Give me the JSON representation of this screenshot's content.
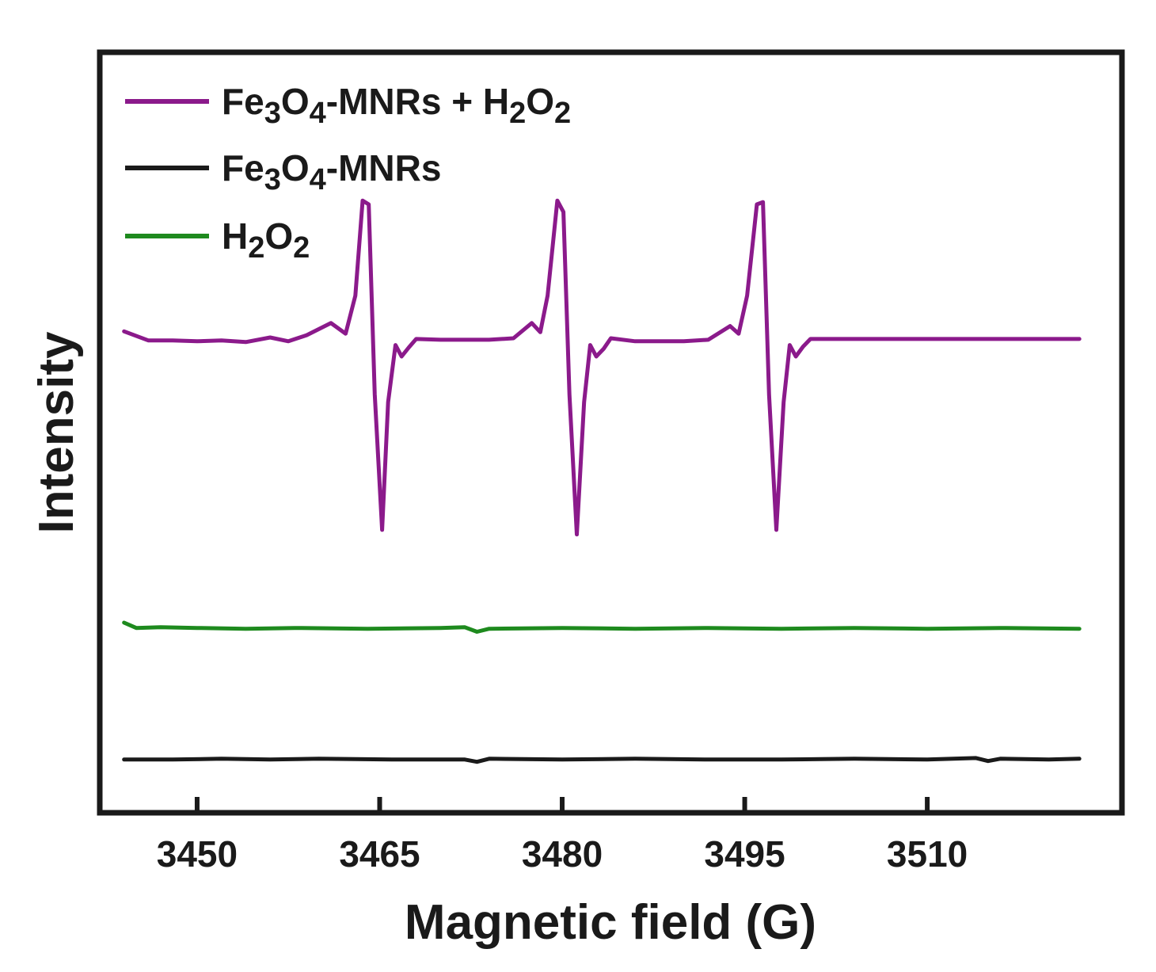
{
  "chart_data": {
    "type": "line",
    "title": "",
    "xlabel": "Magnetic field (G)",
    "ylabel": "Intensity",
    "xlim": [
      3442,
      3526
    ],
    "ylim": [
      0,
      100
    ],
    "xticks": [
      3450,
      3465,
      3480,
      3495,
      3510
    ],
    "xtick_labels": [
      "3450",
      "3465",
      "3480",
      "3495",
      "3510"
    ],
    "y_ticks_shown": false,
    "grid": false,
    "legend_position": "top-left",
    "series": [
      {
        "name": "Fe3O4-MNRs + H2O2",
        "legend": {
          "parts": [
            {
              "text": "Fe",
              "sub": false
            },
            {
              "text": "3",
              "sub": true
            },
            {
              "text": "O",
              "sub": false
            },
            {
              "text": "4",
              "sub": true
            },
            {
              "text": "-MNRs + H",
              "sub": false
            },
            {
              "text": "2",
              "sub": true
            },
            {
              "text": "O",
              "sub": false
            },
            {
              "text": "2",
              "sub": true
            }
          ]
        },
        "color": "#8b1a8b",
        "x": [
          3444,
          3446,
          3448,
          3450,
          3452,
          3454,
          3456,
          3457.5,
          3459,
          3461,
          3462.2,
          3463,
          3463.6,
          3464.1,
          3464.6,
          3465.2,
          3465.7,
          3466.3,
          3466.8,
          3467.4,
          3468,
          3470,
          3474,
          3476,
          3477.5,
          3478.2,
          3478.8,
          3479.6,
          3480.1,
          3480.6,
          3481.2,
          3481.8,
          3482.3,
          3482.8,
          3483.4,
          3484,
          3486,
          3490,
          3492,
          3493.8,
          3494.5,
          3495.2,
          3496,
          3496.5,
          3497,
          3497.6,
          3498.2,
          3498.7,
          3499.2,
          3499.8,
          3500.4,
          3503,
          3506,
          3510,
          3514,
          3518,
          3522.5
        ],
        "y": [
          63.3,
          62.1,
          62.1,
          62.0,
          62.1,
          61.9,
          62.5,
          62.0,
          62.8,
          64.4,
          63.0,
          68.0,
          80.5,
          80.0,
          55.0,
          37.2,
          54.0,
          61.5,
          60.0,
          61.2,
          62.3,
          62.2,
          62.2,
          62.4,
          64.4,
          63.2,
          68.0,
          80.5,
          79.0,
          55.0,
          36.6,
          54.0,
          61.5,
          60.0,
          61.0,
          62.4,
          62.0,
          62.0,
          62.2,
          64.0,
          63.0,
          68.0,
          80.0,
          80.3,
          55.0,
          37.2,
          54.0,
          61.5,
          60.0,
          61.3,
          62.3,
          62.3,
          62.3,
          62.3,
          62.3,
          62.3,
          62.3
        ]
      },
      {
        "name": "Fe3O4-MNRs",
        "legend": {
          "parts": [
            {
              "text": "Fe",
              "sub": false
            },
            {
              "text": "3",
              "sub": true
            },
            {
              "text": "O",
              "sub": false
            },
            {
              "text": "4",
              "sub": true
            },
            {
              "text": "-MNRs",
              "sub": false
            }
          ]
        },
        "color": "#1a1a1a",
        "x": [
          3444,
          3448,
          3452,
          3456,
          3460,
          3466,
          3472,
          3473,
          3474,
          3480,
          3486,
          3492,
          3498,
          3504,
          3510,
          3514,
          3515,
          3516,
          3520,
          3522.5
        ],
        "y": [
          7.0,
          7.0,
          7.1,
          7.0,
          7.1,
          7.0,
          7.0,
          6.7,
          7.1,
          7.0,
          7.1,
          7.0,
          7.0,
          7.1,
          7.0,
          7.2,
          6.8,
          7.1,
          7.0,
          7.1
        ]
      },
      {
        "name": "H2O2",
        "legend": {
          "parts": [
            {
              "text": "H",
              "sub": false
            },
            {
              "text": "2",
              "sub": true
            },
            {
              "text": "O",
              "sub": false
            },
            {
              "text": "2",
              "sub": true
            }
          ]
        },
        "color": "#1e8a1e",
        "x": [
          3444,
          3445,
          3447,
          3450,
          3454,
          3458,
          3464,
          3470,
          3472,
          3473,
          3474,
          3480,
          3486,
          3492,
          3498,
          3504,
          3510,
          3516,
          3522.5
        ],
        "y": [
          25.0,
          24.3,
          24.4,
          24.3,
          24.2,
          24.3,
          24.2,
          24.3,
          24.4,
          23.8,
          24.2,
          24.3,
          24.2,
          24.3,
          24.2,
          24.3,
          24.2,
          24.3,
          24.2
        ]
      }
    ]
  }
}
